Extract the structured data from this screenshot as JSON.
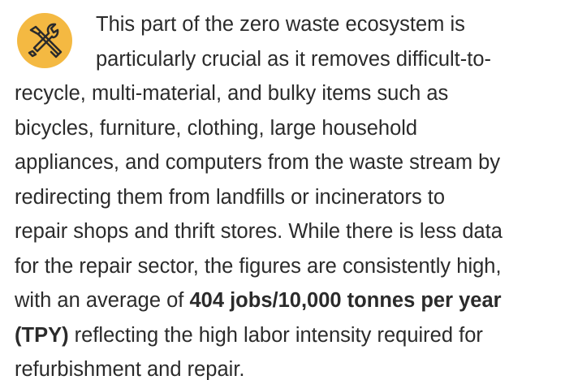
{
  "paragraph": {
    "lines": [
      [
        "This part of the zero waste ecosystem is"
      ],
      [
        "particularly crucial as it removes difficult-to-"
      ],
      [
        "recycle, multi-material, and bulky items such as"
      ],
      [
        "bicycles, furniture, clothing, large household"
      ],
      [
        "appliances, and computers from the waste stream by"
      ],
      [
        "redirecting them from landfills or incinerators to"
      ],
      [
        "repair shops and thrift stores. While there is less data"
      ],
      [
        "for the repair sector, the figures are consistently high,"
      ],
      [
        "with an average of ",
        {
          "bold": "404 jobs/10,000 tonnes per year"
        }
      ],
      [
        {
          "bold": "(TPY)"
        },
        " reflecting the high labor intensity required for"
      ],
      [
        "refurbishment and repair."
      ]
    ]
  }
}
